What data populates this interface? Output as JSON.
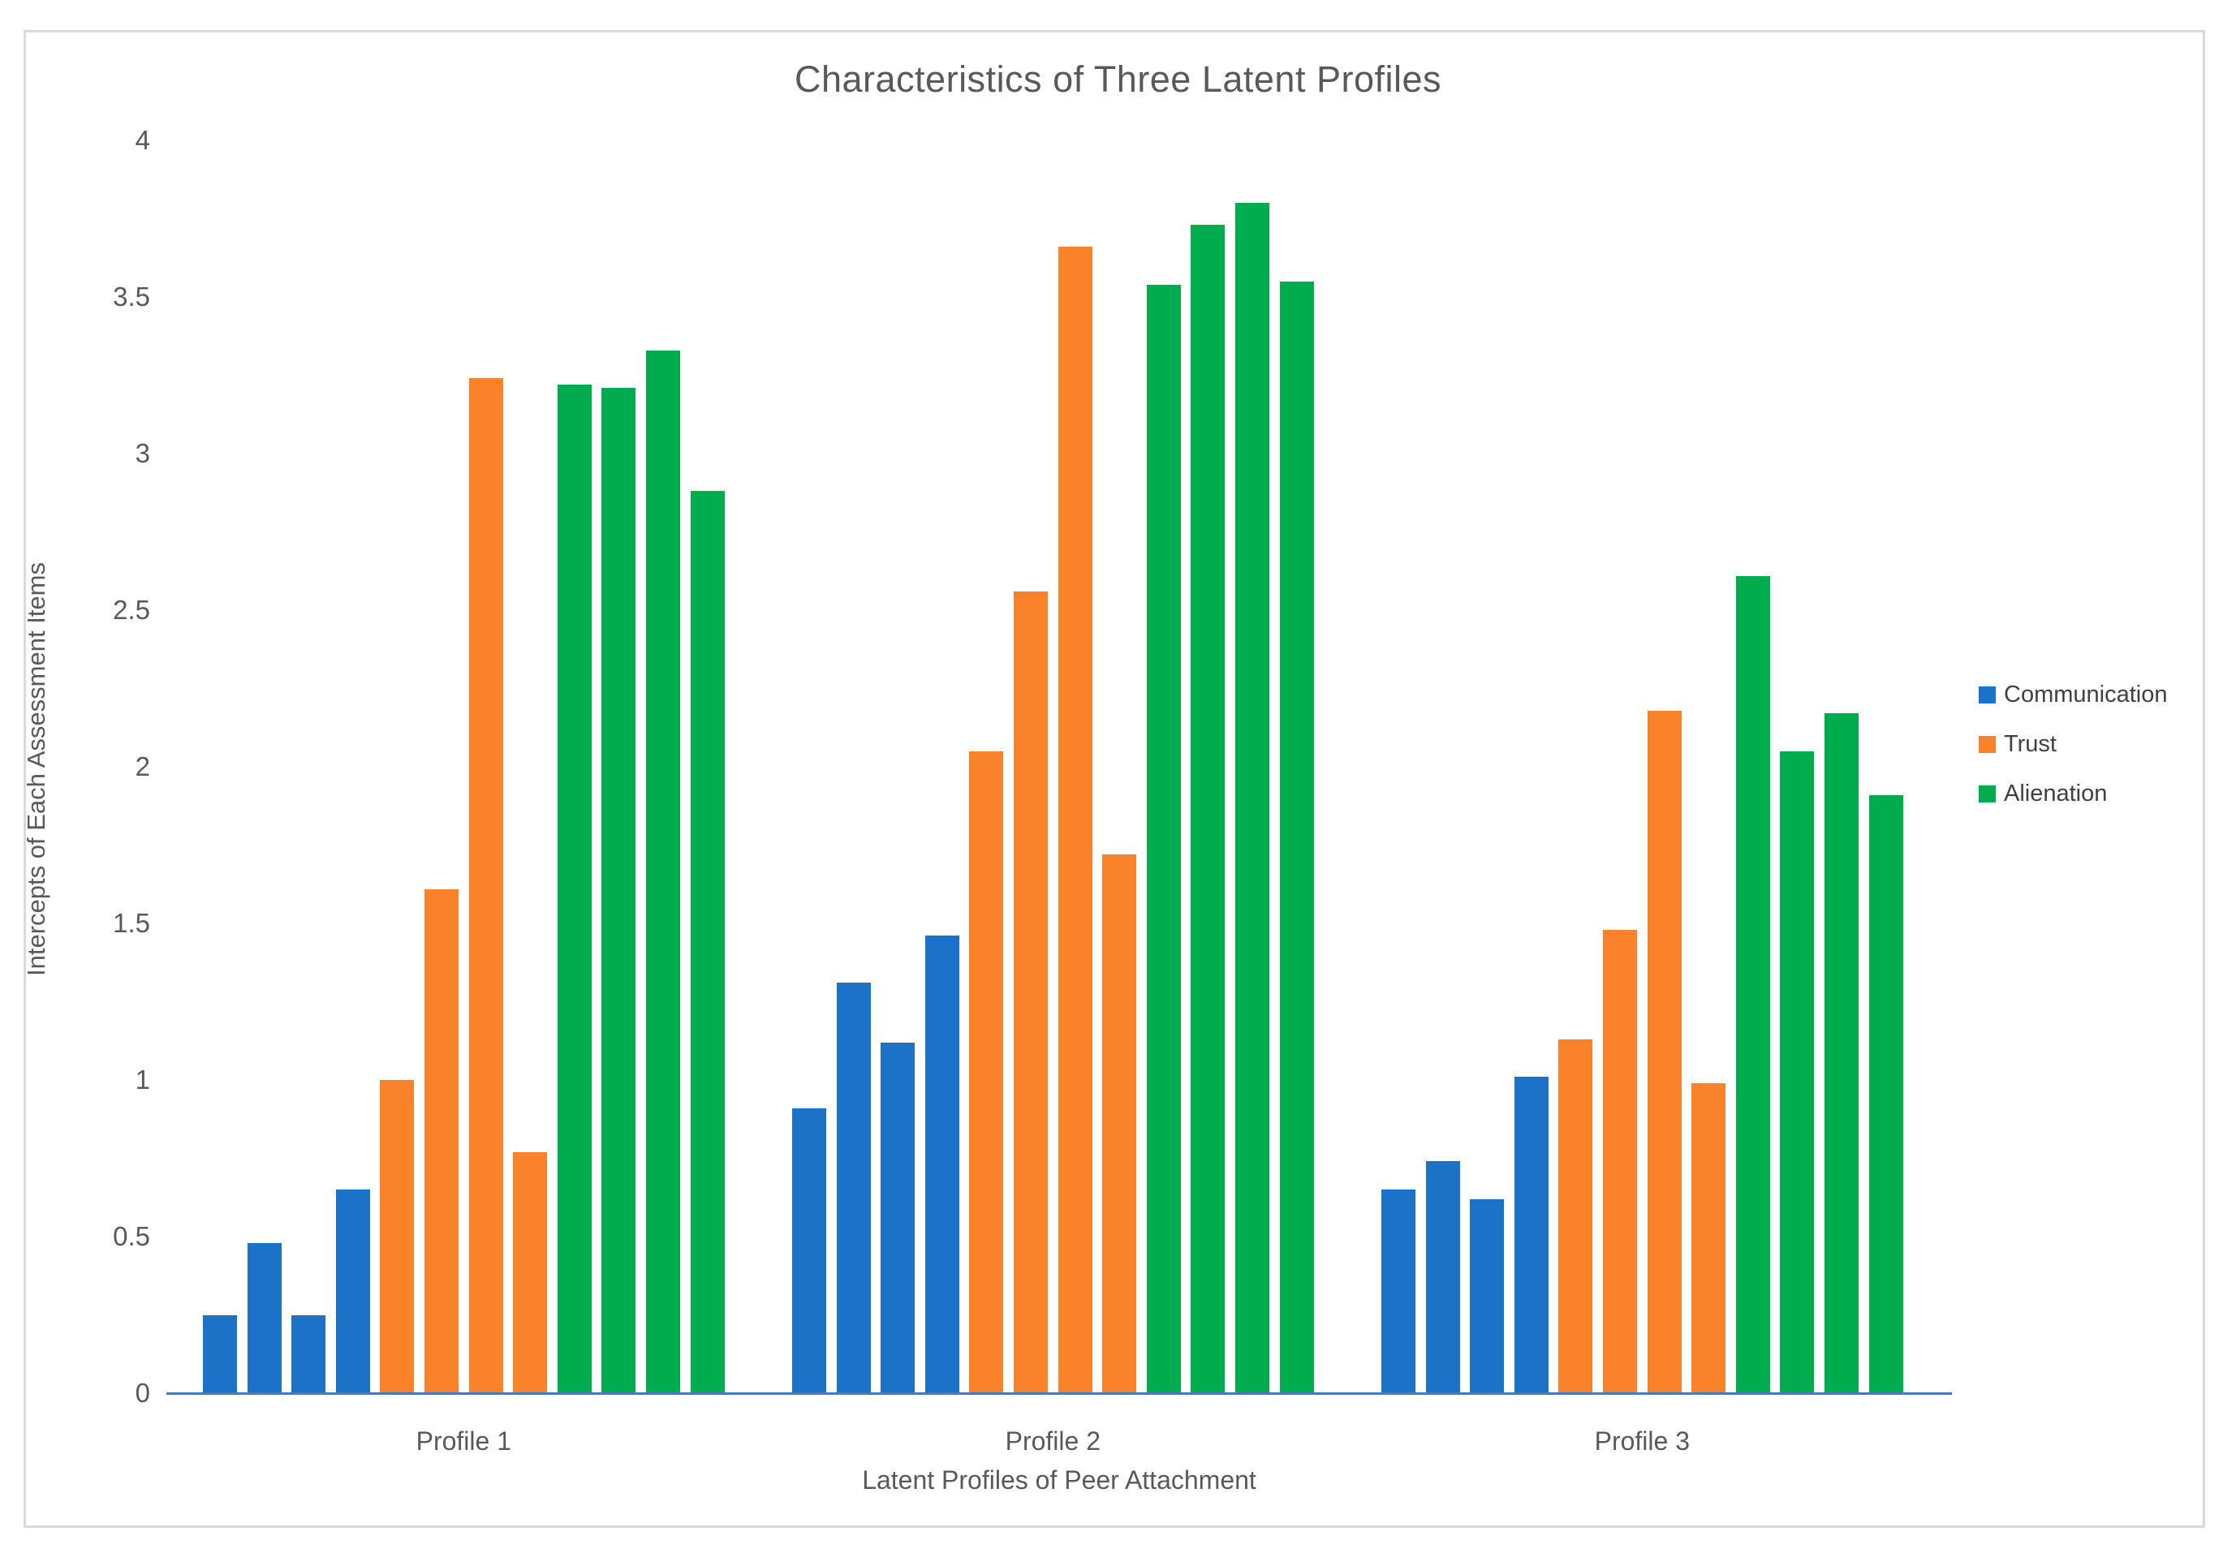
{
  "figure": {
    "title": "Characteristics of Three Latent Profiles",
    "x_axis_title": "Latent Profiles of Peer Attachment",
    "y_axis_title": "Intercepts of Each Assessment Items"
  },
  "chart_data": {
    "type": "bar",
    "title": "Characteristics of Three Latent Profiles",
    "xlabel": "Latent Profiles of Peer Attachment",
    "ylabel": "Intercepts of Each Assessment Items",
    "categories": [
      "Profile 1",
      "Profile 2",
      "Profile 3"
    ],
    "y_ticks": [
      0,
      0.5,
      1,
      1.5,
      2,
      2.5,
      3,
      3.5,
      4
    ],
    "ylim": [
      0,
      4
    ],
    "grid": false,
    "legend_position": "right",
    "bars_per_series_per_category": 4,
    "series": [
      {
        "name": "Communication",
        "color": "#1c72c7",
        "values": [
          [
            0.25,
            0.48,
            0.25,
            0.65
          ],
          [
            0.91,
            1.31,
            1.12,
            1.46
          ],
          [
            0.65,
            0.74,
            0.62,
            1.01
          ]
        ]
      },
      {
        "name": "Trust",
        "color": "#f9822a",
        "values": [
          [
            1.0,
            1.61,
            3.24,
            0.77
          ],
          [
            2.05,
            2.56,
            3.66,
            1.72
          ],
          [
            1.13,
            1.48,
            2.18,
            0.99
          ]
        ]
      },
      {
        "name": "Alienation",
        "color": "#00ac4e",
        "values": [
          [
            3.22,
            3.21,
            3.33,
            2.88
          ],
          [
            3.54,
            3.73,
            3.8,
            3.55
          ],
          [
            2.61,
            2.05,
            2.17,
            1.91
          ]
        ]
      }
    ],
    "axis_line_color": "#4879bd",
    "text_color": "#595959"
  }
}
